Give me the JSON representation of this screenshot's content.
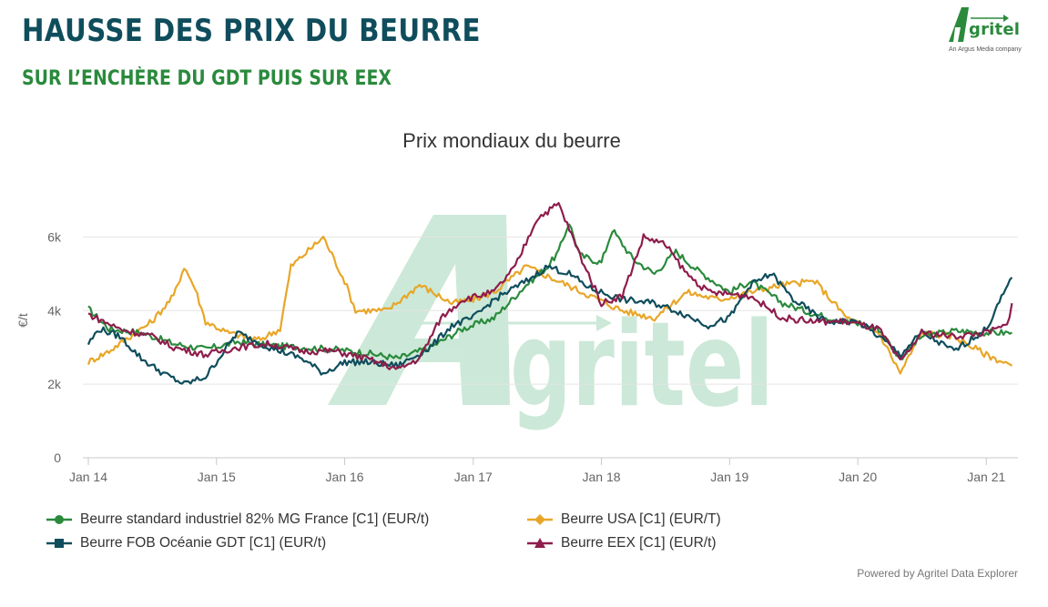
{
  "header": {
    "title": "HAUSSE DES PRIX DU BEURRE",
    "subtitle": "SUR L’ENCHÈRE DU GDT PUIS SUR EEX"
  },
  "brand": {
    "name": "Agritel",
    "tagline": "An Argus Media company",
    "color": "#2a8a3c"
  },
  "credit": "Powered by Agritel Data Explorer",
  "chart_data": {
    "type": "line",
    "title": "Prix mondiaux du beurre",
    "xlabel": "",
    "ylabel": "€/t",
    "ylim": [
      0,
      7000
    ],
    "xlim": [
      "2014-01-01",
      "2021-04-01"
    ],
    "yticks": [
      0,
      2000,
      4000,
      6000
    ],
    "ytick_labels": [
      "0",
      "2k",
      "4k",
      "6k"
    ],
    "xtick_dates": [
      "2014-01-01",
      "2015-01-01",
      "2016-01-01",
      "2017-01-01",
      "2018-01-01",
      "2019-01-01",
      "2020-01-01",
      "2021-01-01"
    ],
    "xtick_labels": [
      "Jan 14",
      "Jan 15",
      "Jan 16",
      "Jan 17",
      "Jan 18",
      "Jan 19",
      "Jan 20",
      "Jan 21"
    ],
    "grid": true,
    "legend_position": "bottom",
    "watermark": "Agritel",
    "series": [
      {
        "name": "Beurre standard industriel 82% MG France [C1] (EUR/t)",
        "color": "#2a8a3c",
        "marker": "circle",
        "points": [
          [
            "2014-01-01",
            4050
          ],
          [
            "2014-03-01",
            3500
          ],
          [
            "2014-06-01",
            3400
          ],
          [
            "2014-09-01",
            3100
          ],
          [
            "2014-12-01",
            2950
          ],
          [
            "2015-03-01",
            3150
          ],
          [
            "2015-06-01",
            3050
          ],
          [
            "2015-09-01",
            3000
          ],
          [
            "2015-12-01",
            2950
          ],
          [
            "2016-03-01",
            2850
          ],
          [
            "2016-06-01",
            2700
          ],
          [
            "2016-09-01",
            3000
          ],
          [
            "2016-12-01",
            3500
          ],
          [
            "2017-03-01",
            3800
          ],
          [
            "2017-06-01",
            4700
          ],
          [
            "2017-08-01",
            5200
          ],
          [
            "2017-09-01",
            5600
          ],
          [
            "2017-10-01",
            6400
          ],
          [
            "2017-11-01",
            5500
          ],
          [
            "2018-01-01",
            5300
          ],
          [
            "2018-02-01",
            6200
          ],
          [
            "2018-04-01",
            5400
          ],
          [
            "2018-06-01",
            5000
          ],
          [
            "2018-08-01",
            5600
          ],
          [
            "2018-10-01",
            5100
          ],
          [
            "2019-01-01",
            4500
          ],
          [
            "2019-03-01",
            4800
          ],
          [
            "2019-06-01",
            4200
          ],
          [
            "2019-09-01",
            3900
          ],
          [
            "2019-12-01",
            3700
          ],
          [
            "2020-03-01",
            3500
          ],
          [
            "2020-05-01",
            2700
          ],
          [
            "2020-07-01",
            3300
          ],
          [
            "2020-10-01",
            3450
          ],
          [
            "2021-01-01",
            3400
          ],
          [
            "2021-03-15",
            3400
          ]
        ]
      },
      {
        "name": "Beurre USA [C1] (EUR/T)",
        "color": "#e8a628",
        "marker": "diamond",
        "points": [
          [
            "2014-01-01",
            2600
          ],
          [
            "2014-03-01",
            2900
          ],
          [
            "2014-05-01",
            3300
          ],
          [
            "2014-07-01",
            3700
          ],
          [
            "2014-09-01",
            4400
          ],
          [
            "2014-10-01",
            5200
          ],
          [
            "2014-11-01",
            4600
          ],
          [
            "2014-12-01",
            3700
          ],
          [
            "2015-02-01",
            3400
          ],
          [
            "2015-05-01",
            3200
          ],
          [
            "2015-07-01",
            3500
          ],
          [
            "2015-08-01",
            5200
          ],
          [
            "2015-11-01",
            6000
          ],
          [
            "2016-01-01",
            4800
          ],
          [
            "2016-02-01",
            4000
          ],
          [
            "2016-05-01",
            4000
          ],
          [
            "2016-08-01",
            4700
          ],
          [
            "2016-11-01",
            4200
          ],
          [
            "2017-01-01",
            4300
          ],
          [
            "2017-03-01",
            4500
          ],
          [
            "2017-06-01",
            5200
          ],
          [
            "2017-09-01",
            4800
          ],
          [
            "2017-12-01",
            4400
          ],
          [
            "2018-03-01",
            4000
          ],
          [
            "2018-06-01",
            3800
          ],
          [
            "2018-09-01",
            4500
          ],
          [
            "2018-12-01",
            4300
          ],
          [
            "2019-03-01",
            4500
          ],
          [
            "2019-06-01",
            4700
          ],
          [
            "2019-09-01",
            4800
          ],
          [
            "2019-12-01",
            3800
          ],
          [
            "2020-03-01",
            3400
          ],
          [
            "2020-05-01",
            2300
          ],
          [
            "2020-07-01",
            3400
          ],
          [
            "2020-10-01",
            3300
          ],
          [
            "2021-01-01",
            2800
          ],
          [
            "2021-03-15",
            2500
          ]
        ]
      },
      {
        "name": "Beurre FOB Océanie GDT [C1] (EUR/t)",
        "color": "#0f4d5c",
        "marker": "square",
        "points": [
          [
            "2014-01-01",
            3100
          ],
          [
            "2014-02-01",
            3500
          ],
          [
            "2014-04-01",
            3300
          ],
          [
            "2014-06-01",
            2700
          ],
          [
            "2014-08-01",
            2300
          ],
          [
            "2014-10-01",
            2000
          ],
          [
            "2014-12-01",
            2200
          ],
          [
            "2015-03-01",
            3400
          ],
          [
            "2015-06-01",
            3000
          ],
          [
            "2015-09-01",
            2700
          ],
          [
            "2015-11-01",
            2300
          ],
          [
            "2016-01-01",
            2600
          ],
          [
            "2016-03-01",
            2600
          ],
          [
            "2016-06-01",
            2500
          ],
          [
            "2016-09-01",
            3000
          ],
          [
            "2016-11-01",
            3600
          ],
          [
            "2017-01-01",
            3800
          ],
          [
            "2017-03-01",
            4300
          ],
          [
            "2017-06-01",
            4800
          ],
          [
            "2017-08-01",
            5200
          ],
          [
            "2017-10-01",
            5000
          ],
          [
            "2017-12-01",
            4600
          ],
          [
            "2018-03-01",
            4300
          ],
          [
            "2018-06-01",
            4200
          ],
          [
            "2018-08-01",
            4000
          ],
          [
            "2018-11-01",
            3600
          ],
          [
            "2019-01-01",
            3800
          ],
          [
            "2019-03-01",
            4700
          ],
          [
            "2019-05-01",
            5000
          ],
          [
            "2019-07-01",
            4300
          ],
          [
            "2019-10-01",
            3700
          ],
          [
            "2020-01-01",
            3700
          ],
          [
            "2020-03-01",
            3300
          ],
          [
            "2020-05-01",
            2800
          ],
          [
            "2020-07-01",
            3400
          ],
          [
            "2020-10-01",
            2900
          ],
          [
            "2021-01-01",
            3500
          ],
          [
            "2021-02-01",
            4100
          ],
          [
            "2021-03-15",
            4900
          ]
        ]
      },
      {
        "name": "Beurre EEX [C1] (EUR/t)",
        "color": "#8e1d4c",
        "marker": "triangle",
        "points": [
          [
            "2014-01-01",
            3900
          ],
          [
            "2014-04-01",
            3500
          ],
          [
            "2014-07-01",
            3300
          ],
          [
            "2014-09-01",
            3000
          ],
          [
            "2014-12-01",
            2800
          ],
          [
            "2015-03-01",
            3000
          ],
          [
            "2015-06-01",
            3100
          ],
          [
            "2015-09-01",
            2900
          ],
          [
            "2015-12-01",
            2900
          ],
          [
            "2016-03-01",
            2700
          ],
          [
            "2016-06-01",
            2400
          ],
          [
            "2016-08-01",
            2700
          ],
          [
            "2016-10-01",
            3800
          ],
          [
            "2016-12-01",
            4300
          ],
          [
            "2017-03-01",
            4500
          ],
          [
            "2017-05-01",
            5200
          ],
          [
            "2017-07-01",
            6500
          ],
          [
            "2017-09-01",
            6900
          ],
          [
            "2017-11-01",
            5500
          ],
          [
            "2018-01-01",
            4200
          ],
          [
            "2018-03-01",
            4400
          ],
          [
            "2018-05-01",
            6000
          ],
          [
            "2018-07-01",
            5800
          ],
          [
            "2018-09-01",
            5000
          ],
          [
            "2018-11-01",
            4500
          ],
          [
            "2019-03-01",
            4400
          ],
          [
            "2019-06-01",
            3800
          ],
          [
            "2019-09-01",
            3700
          ],
          [
            "2019-12-01",
            3700
          ],
          [
            "2020-03-01",
            3500
          ],
          [
            "2020-05-01",
            2600
          ],
          [
            "2020-07-01",
            3400
          ],
          [
            "2020-10-01",
            3300
          ],
          [
            "2021-01-01",
            3400
          ],
          [
            "2021-03-01",
            3600
          ],
          [
            "2021-03-15",
            4200
          ]
        ]
      }
    ]
  }
}
